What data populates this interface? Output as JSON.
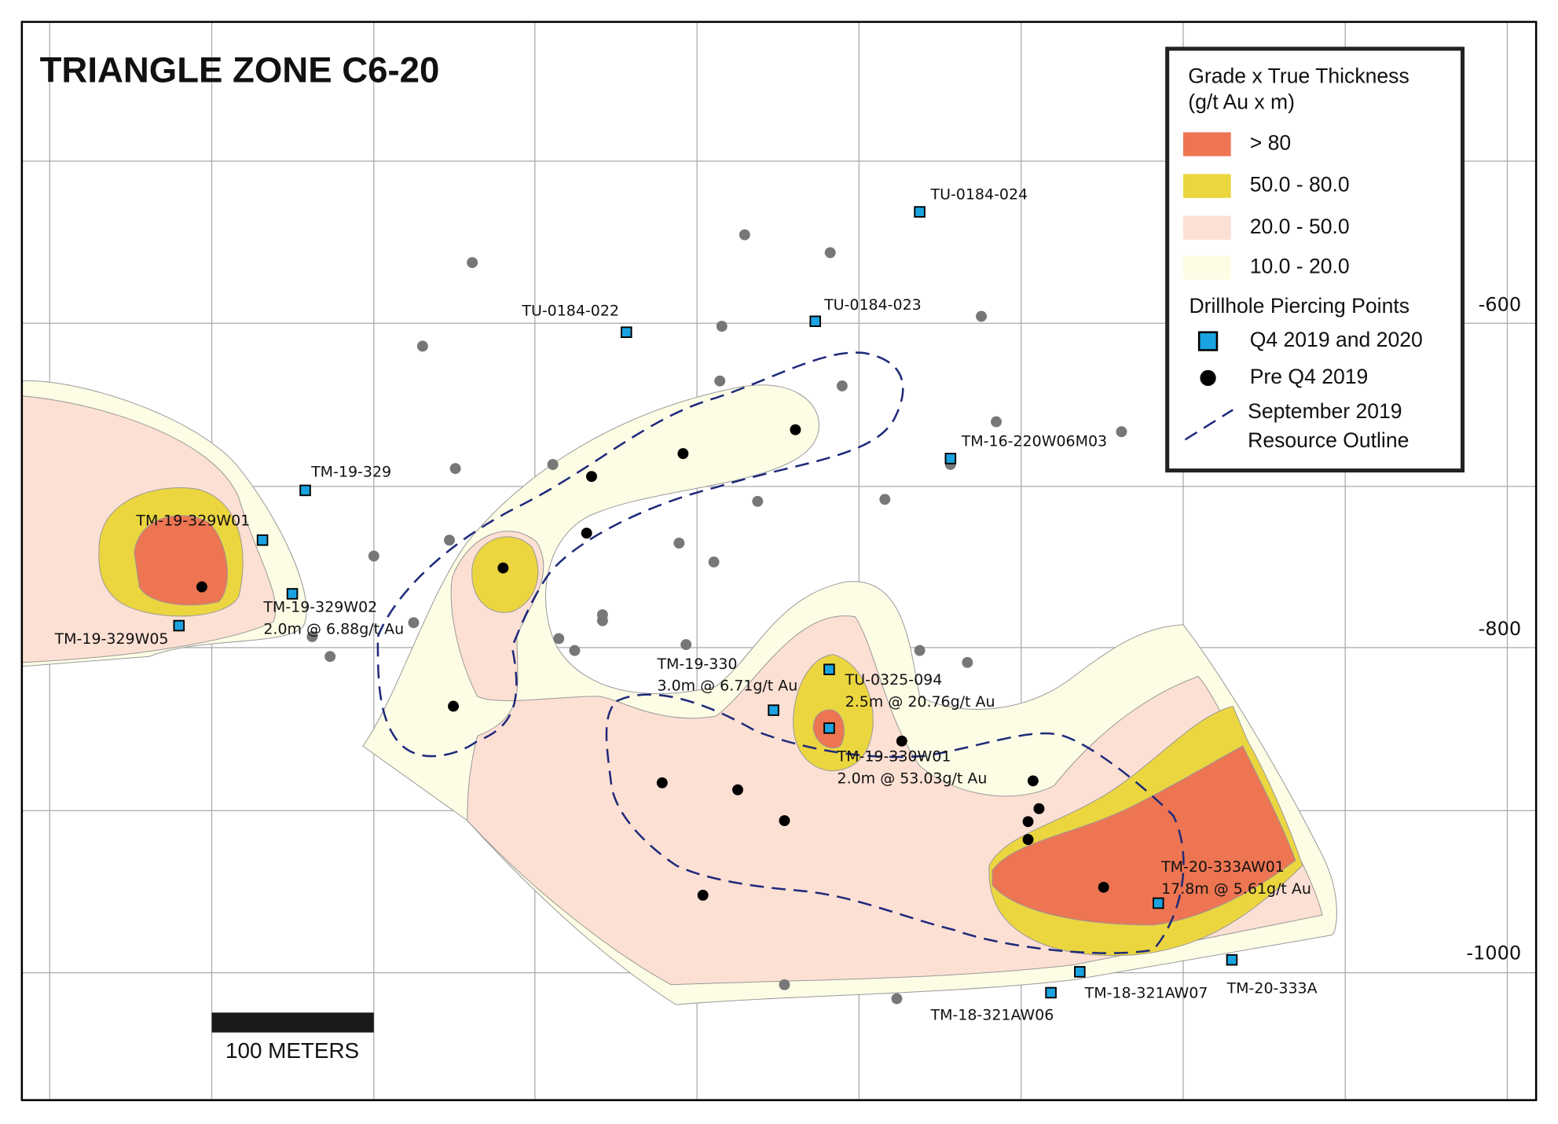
{
  "title": "TRIANGLE ZONE C6-20",
  "legend": {
    "heading": [
      "Grade x True Thickness",
      "(g/t Au x m)"
    ],
    "grades": [
      "> 80",
      "50.0 - 80.0",
      "20.0 - 50.0",
      "10.0 - 20.0"
    ],
    "points_heading": "Drillhole Piercing Points",
    "points": [
      "Q4 2019 and 2020",
      "Pre Q4 2019"
    ],
    "outline": [
      "September 2019",
      "Resource Outline"
    ]
  },
  "elevations": [
    "-600",
    "-800",
    "-1000"
  ],
  "scale_bar": "100 METERS",
  "drillholes": [
    {
      "name": "TU-0184-024"
    },
    {
      "name": "TU-0184-022"
    },
    {
      "name": "TU-0184-023"
    },
    {
      "name": "TM-16-220W06M03"
    },
    {
      "name": "TM-19-329"
    },
    {
      "name": "TM-19-329W01"
    },
    {
      "name": "TM-19-329W02",
      "intercept": "2.0m @ 6.88g/t Au"
    },
    {
      "name": "TM-19-329W05"
    },
    {
      "name": "TM-19-330",
      "intercept": "3.0m @ 6.71g/t Au"
    },
    {
      "name": "TU-0325-094",
      "intercept": "2.5m @ 20.76g/t Au"
    },
    {
      "name": "TM-19-330W01",
      "intercept": "2.0m @ 53.03g/t Au"
    },
    {
      "name": "TM-20-333AW01",
      "intercept": "17.8m @ 5.61g/t Au"
    },
    {
      "name": "TM-18-321AW07"
    },
    {
      "name": "TM-18-321AW06"
    },
    {
      "name": "TM-20-333A"
    }
  ]
}
